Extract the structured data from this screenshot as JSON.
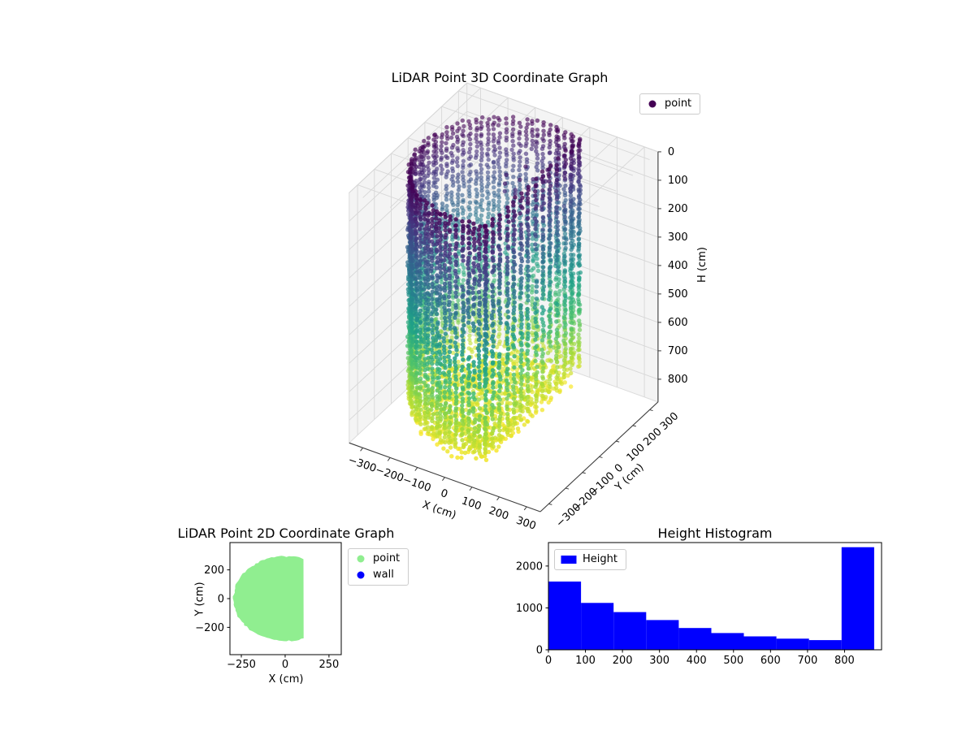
{
  "colors": {
    "background": "#ffffff",
    "viridis_stops": [
      "#440154",
      "#46327e",
      "#365c8d",
      "#277f8e",
      "#1fa187",
      "#4ac16d",
      "#a0da39",
      "#fde725"
    ],
    "pane": "#f4f4f4",
    "pane_edge": "#dcdcdc",
    "grid3d": "#d7d7d7",
    "axis_line": "#3c3c3c",
    "point2d": "#90ee90",
    "wall2d": "#0000ff",
    "hist_bar": "#0000ff"
  },
  "chart_data": [
    {
      "type": "scatter3d",
      "title": "LiDAR Point 3D Coordinate Graph",
      "xlabel": "X (cm)",
      "ylabel": "Y (cm)",
      "zlabel": "H (cm)",
      "xticks": [
        -300,
        -200,
        -100,
        0,
        100,
        200,
        300
      ],
      "yticks": [
        -300,
        -200,
        -100,
        0,
        100,
        200,
        300
      ],
      "zticks": [
        0,
        100,
        200,
        300,
        400,
        500,
        600,
        700,
        800
      ],
      "xlim": [
        -350,
        350
      ],
      "ylim": [
        -350,
        350
      ],
      "zlim": [
        0,
        880
      ],
      "z_axis_inverted": true,
      "grid": true,
      "legend": [
        {
          "label": "point",
          "color": "#440154"
        }
      ],
      "color_by": "height (viridis: H=0 dark purple at top, H~850 yellow at bottom)",
      "point_cloud": {
        "description": "room scan: circular wall of radius ~295 cm clipped by a flat wall at x=105 cm; wall spans H 0-800 cm, floor points at H ~770-855 cm, a few stray points at H 60-340 cm near the top",
        "wall_radius_cm": 295,
        "flat_wall_x_cm": 105,
        "wall_height_range_cm": [
          0,
          800
        ],
        "floor_height_range_cm": [
          770,
          855
        ],
        "wall_columns": 72,
        "points_per_column": 60,
        "floor_rings": 17,
        "stray_clusters": [
          {
            "center_xyh": [
              -20,
              60,
              90
            ],
            "n": 6
          },
          {
            "center_xyh": [
              40,
              140,
              70
            ],
            "n": 4
          },
          {
            "center_xyh": [
              -250,
              60,
              310
            ],
            "n": 6
          },
          {
            "center_xyh": [
              -205,
              -120,
              255
            ],
            "n": 3
          }
        ]
      }
    },
    {
      "type": "scatter",
      "title": "LiDAR Point 2D Coordinate Graph",
      "xlabel": "X (cm)",
      "ylabel": "Y (cm)",
      "xticks": [
        -250,
        0,
        250
      ],
      "yticks": [
        -200,
        0,
        200
      ],
      "xlim": [
        -315,
        320
      ],
      "ylim": [
        -390,
        390
      ],
      "legend": [
        {
          "label": "point",
          "color": "#90ee90"
        },
        {
          "label": "wall",
          "color": "#0000ff"
        }
      ],
      "blob": {
        "shape": "disc of radius ~295 cm clipped by vertical wall at x=105 cm",
        "center": [
          0,
          0
        ],
        "radius_cm": 295,
        "clip_x_cm": 105,
        "fill": "#90ee90"
      }
    },
    {
      "type": "bar",
      "title": "Height Histogram",
      "xlabel": "",
      "ylabel": "",
      "legend": [
        {
          "label": "Height",
          "color": "#0000ff"
        }
      ],
      "bin_edges": [
        0,
        88,
        176,
        264,
        352,
        440,
        528,
        616,
        704,
        792,
        880
      ],
      "counts": [
        1630,
        1120,
        900,
        710,
        520,
        400,
        320,
        265,
        230,
        2450
      ],
      "xticks": [
        0,
        100,
        200,
        300,
        400,
        500,
        600,
        700,
        800
      ],
      "yticks": [
        0,
        1000,
        2000
      ],
      "xlim": [
        0,
        900
      ],
      "ylim": [
        0,
        2560
      ]
    }
  ]
}
